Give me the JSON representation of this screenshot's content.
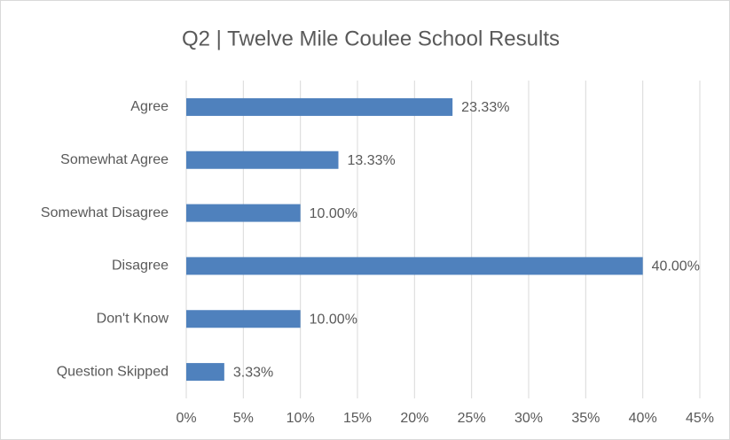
{
  "chart_data": {
    "type": "bar",
    "orientation": "horizontal",
    "title": "Q2 | Twelve Mile Coulee School Results",
    "categories": [
      "Agree",
      "Somewhat Agree",
      "Somewhat Disagree",
      "Disagree",
      "Don't Know",
      "Question Skipped"
    ],
    "values": [
      23.33,
      13.33,
      10.0,
      40.0,
      10.0,
      3.33
    ],
    "value_labels": [
      "23.33%",
      "13.33%",
      "10.00%",
      "40.00%",
      "10.00%",
      "3.33%"
    ],
    "color": "#4f81bd",
    "xlim": [
      0,
      45
    ],
    "xticks": [
      {
        "value": 0,
        "label": "0%"
      },
      {
        "value": 5,
        "label": "5%"
      },
      {
        "value": 10,
        "label": "10%"
      },
      {
        "value": 15,
        "label": "15%"
      },
      {
        "value": 20,
        "label": "20%"
      },
      {
        "value": 25,
        "label": "25%"
      },
      {
        "value": 30,
        "label": "30%"
      },
      {
        "value": 35,
        "label": "35%"
      },
      {
        "value": 40,
        "label": "40%"
      },
      {
        "value": 45,
        "label": "45%"
      }
    ],
    "grid": true
  }
}
